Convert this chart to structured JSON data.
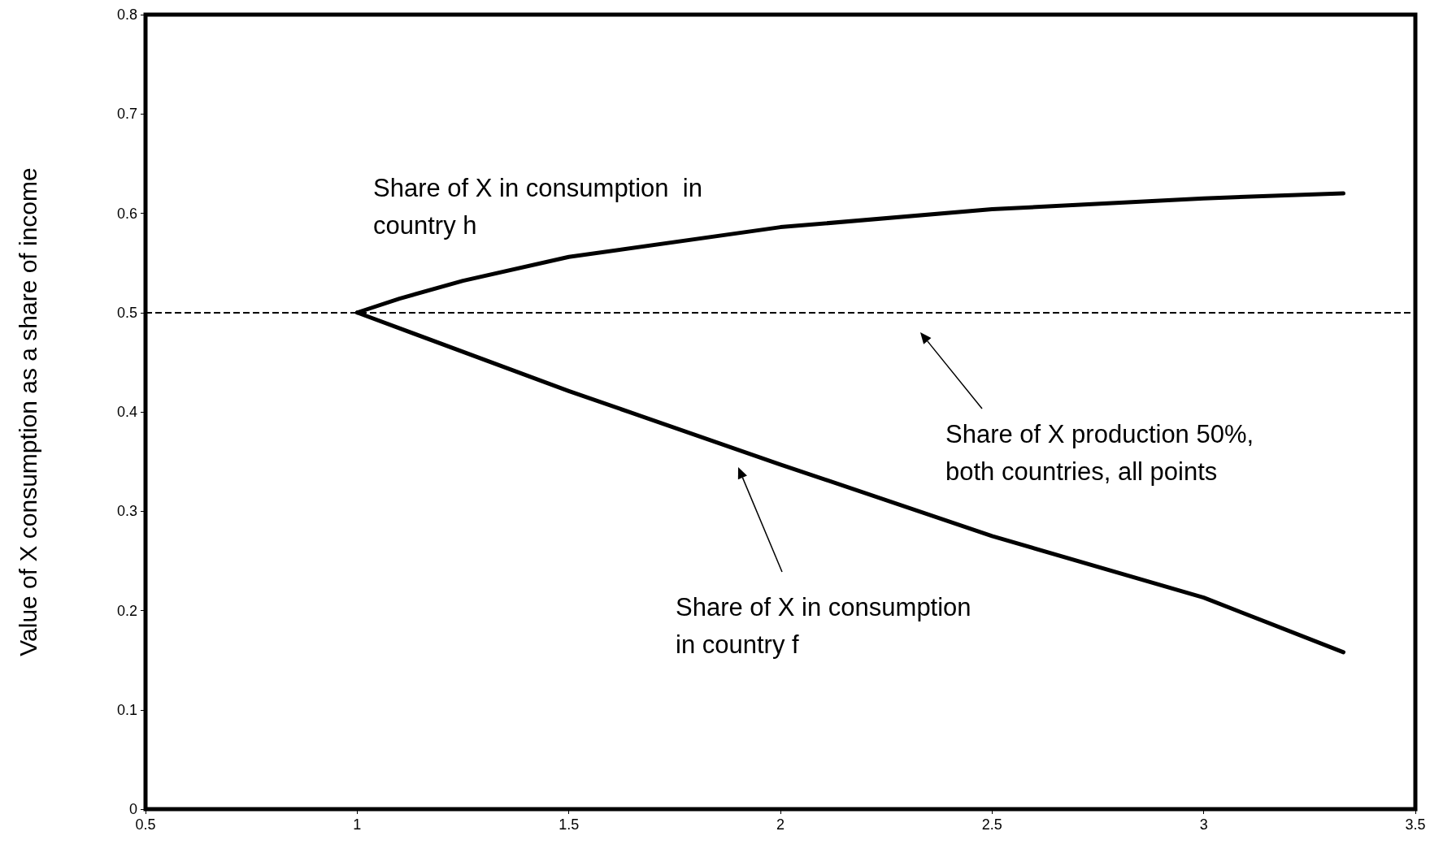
{
  "chart_data": {
    "type": "line",
    "ylabel": "Value of X consumption as a share of income",
    "xlim": [
      0.5,
      3.5
    ],
    "xticks": [
      0.5,
      1,
      1.5,
      2,
      2.5,
      3,
      3.5
    ],
    "ylim": [
      0,
      0.8
    ],
    "yticks": [
      0,
      0.1,
      0.2,
      0.3,
      0.4,
      0.5,
      0.6,
      0.7,
      0.8
    ],
    "series": [
      {
        "color": "#000000",
        "x": [
          1,
          1.1,
          1.25,
          1.5,
          2,
          2.5,
          3,
          3.33
        ],
        "values": [
          0.5,
          0.514,
          0.532,
          0.556,
          0.586,
          0.604,
          0.615,
          0.62
        ]
      },
      {
        "color": "#000000",
        "x": [
          1,
          1.5,
          2,
          2.5,
          3,
          3.33
        ],
        "values": [
          0.5,
          0.421,
          0.347,
          0.275,
          0.213,
          0.158
        ]
      }
    ],
    "ref_lines": [
      {
        "axis": "y",
        "value": 0.5,
        "color": "#000000",
        "line_style": "dashed"
      }
    ],
    "annotations": [
      "Share of X in consumption  in\ncountry h",
      "Share of X in consumption\nin country f",
      "Share of X production 50%,\nboth countries, all points"
    ],
    "marker": "none",
    "line_style": "solid",
    "grid": false
  }
}
